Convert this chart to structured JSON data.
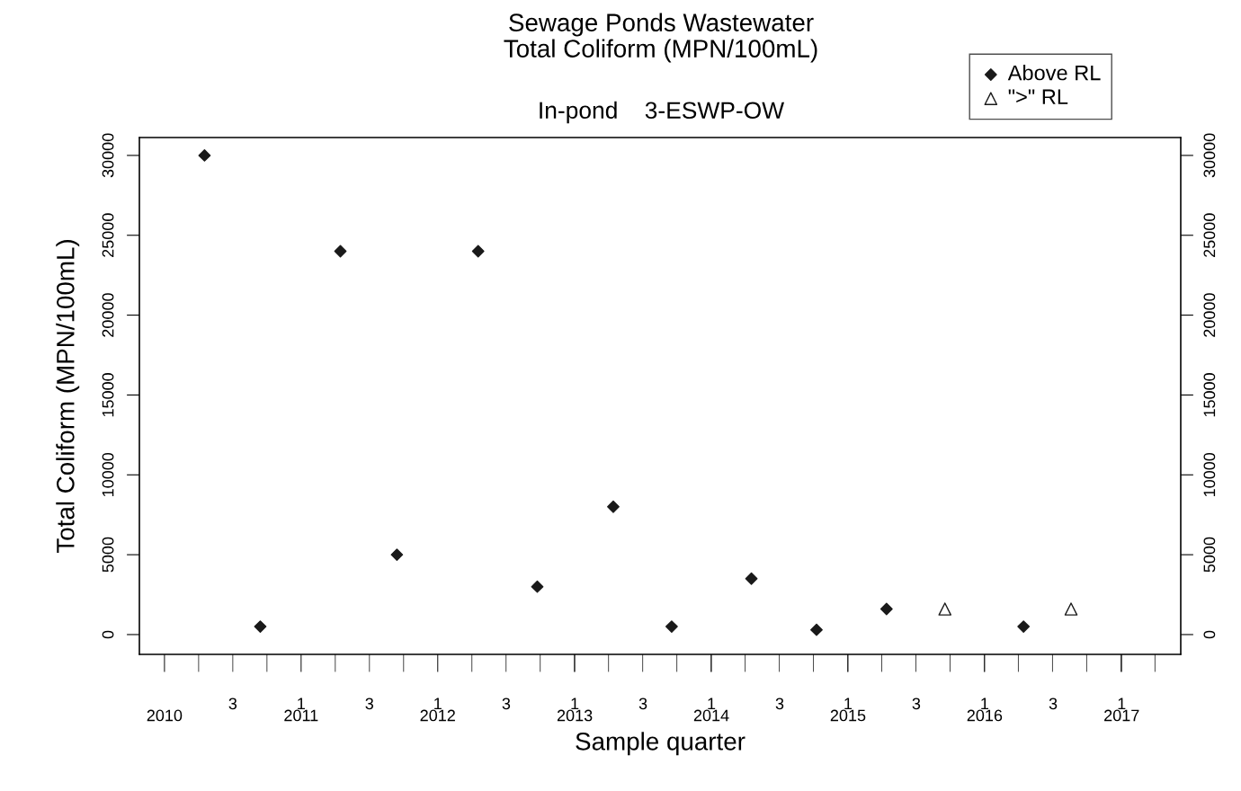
{
  "chart_data": {
    "type": "scatter",
    "title": "Sewage Ponds Wastewater\nTotal Coliform (MPN/100mL)",
    "subtitle": "In-pond    3-ESWP-OW",
    "xlabel": "Sample quarter",
    "ylabel": "Total Coliform (MPN/100mL)",
    "series": [
      {
        "name": "Above RL",
        "color": "#1a1a1a",
        "marker": "diamond",
        "x": [
          "2010-04-18",
          "2010-09-14",
          "2011-04-16",
          "2011-09-14",
          "2012-04-18",
          "2012-09-23",
          "2013-04-14",
          "2013-09-17",
          "2014-04-18",
          "2014-10-09",
          "2015-04-14",
          "2016-04-14"
        ],
        "values": [
          30000,
          500,
          24000,
          5000,
          24000,
          3000,
          8000,
          500,
          3500,
          300,
          1600,
          500
        ]
      },
      {
        "name": "\">\" RL",
        "color": "#1a1a1a",
        "marker": "triangle",
        "x": [
          "2015-09-17",
          "2016-08-19"
        ],
        "values": [
          1600,
          1600
        ]
      }
    ],
    "xlim": [
      "2009-10-26",
      "2017-06-08"
    ],
    "xticks": [
      {
        "value": "2010-01-01",
        "label": "2010"
      },
      {
        "value": "2011-01-01",
        "label": "2011"
      },
      {
        "value": "2012-01-01",
        "label": "2012"
      },
      {
        "value": "2013-01-01",
        "label": "2013"
      },
      {
        "value": "2014-01-01",
        "label": "2014"
      },
      {
        "value": "2015-01-01",
        "label": "2015"
      },
      {
        "value": "2016-01-01",
        "label": "2016"
      },
      {
        "value": "2017-01-01",
        "label": "2017"
      }
    ],
    "annotations": [
      "3",
      "1",
      "3",
      "1",
      "3",
      "1",
      "3",
      "1",
      "3",
      "1",
      "3",
      "1",
      "3",
      "1"
    ],
    "ylim": [
      -1240,
      31120
    ],
    "yticks": [
      0,
      5000,
      10000,
      15000,
      20000,
      25000,
      30000
    ],
    "y2lim": [
      -1240,
      31120
    ],
    "y2ticks": [
      0,
      5000,
      10000,
      15000,
      20000,
      25000,
      30000
    ],
    "legend": "top right",
    "grid": false
  }
}
